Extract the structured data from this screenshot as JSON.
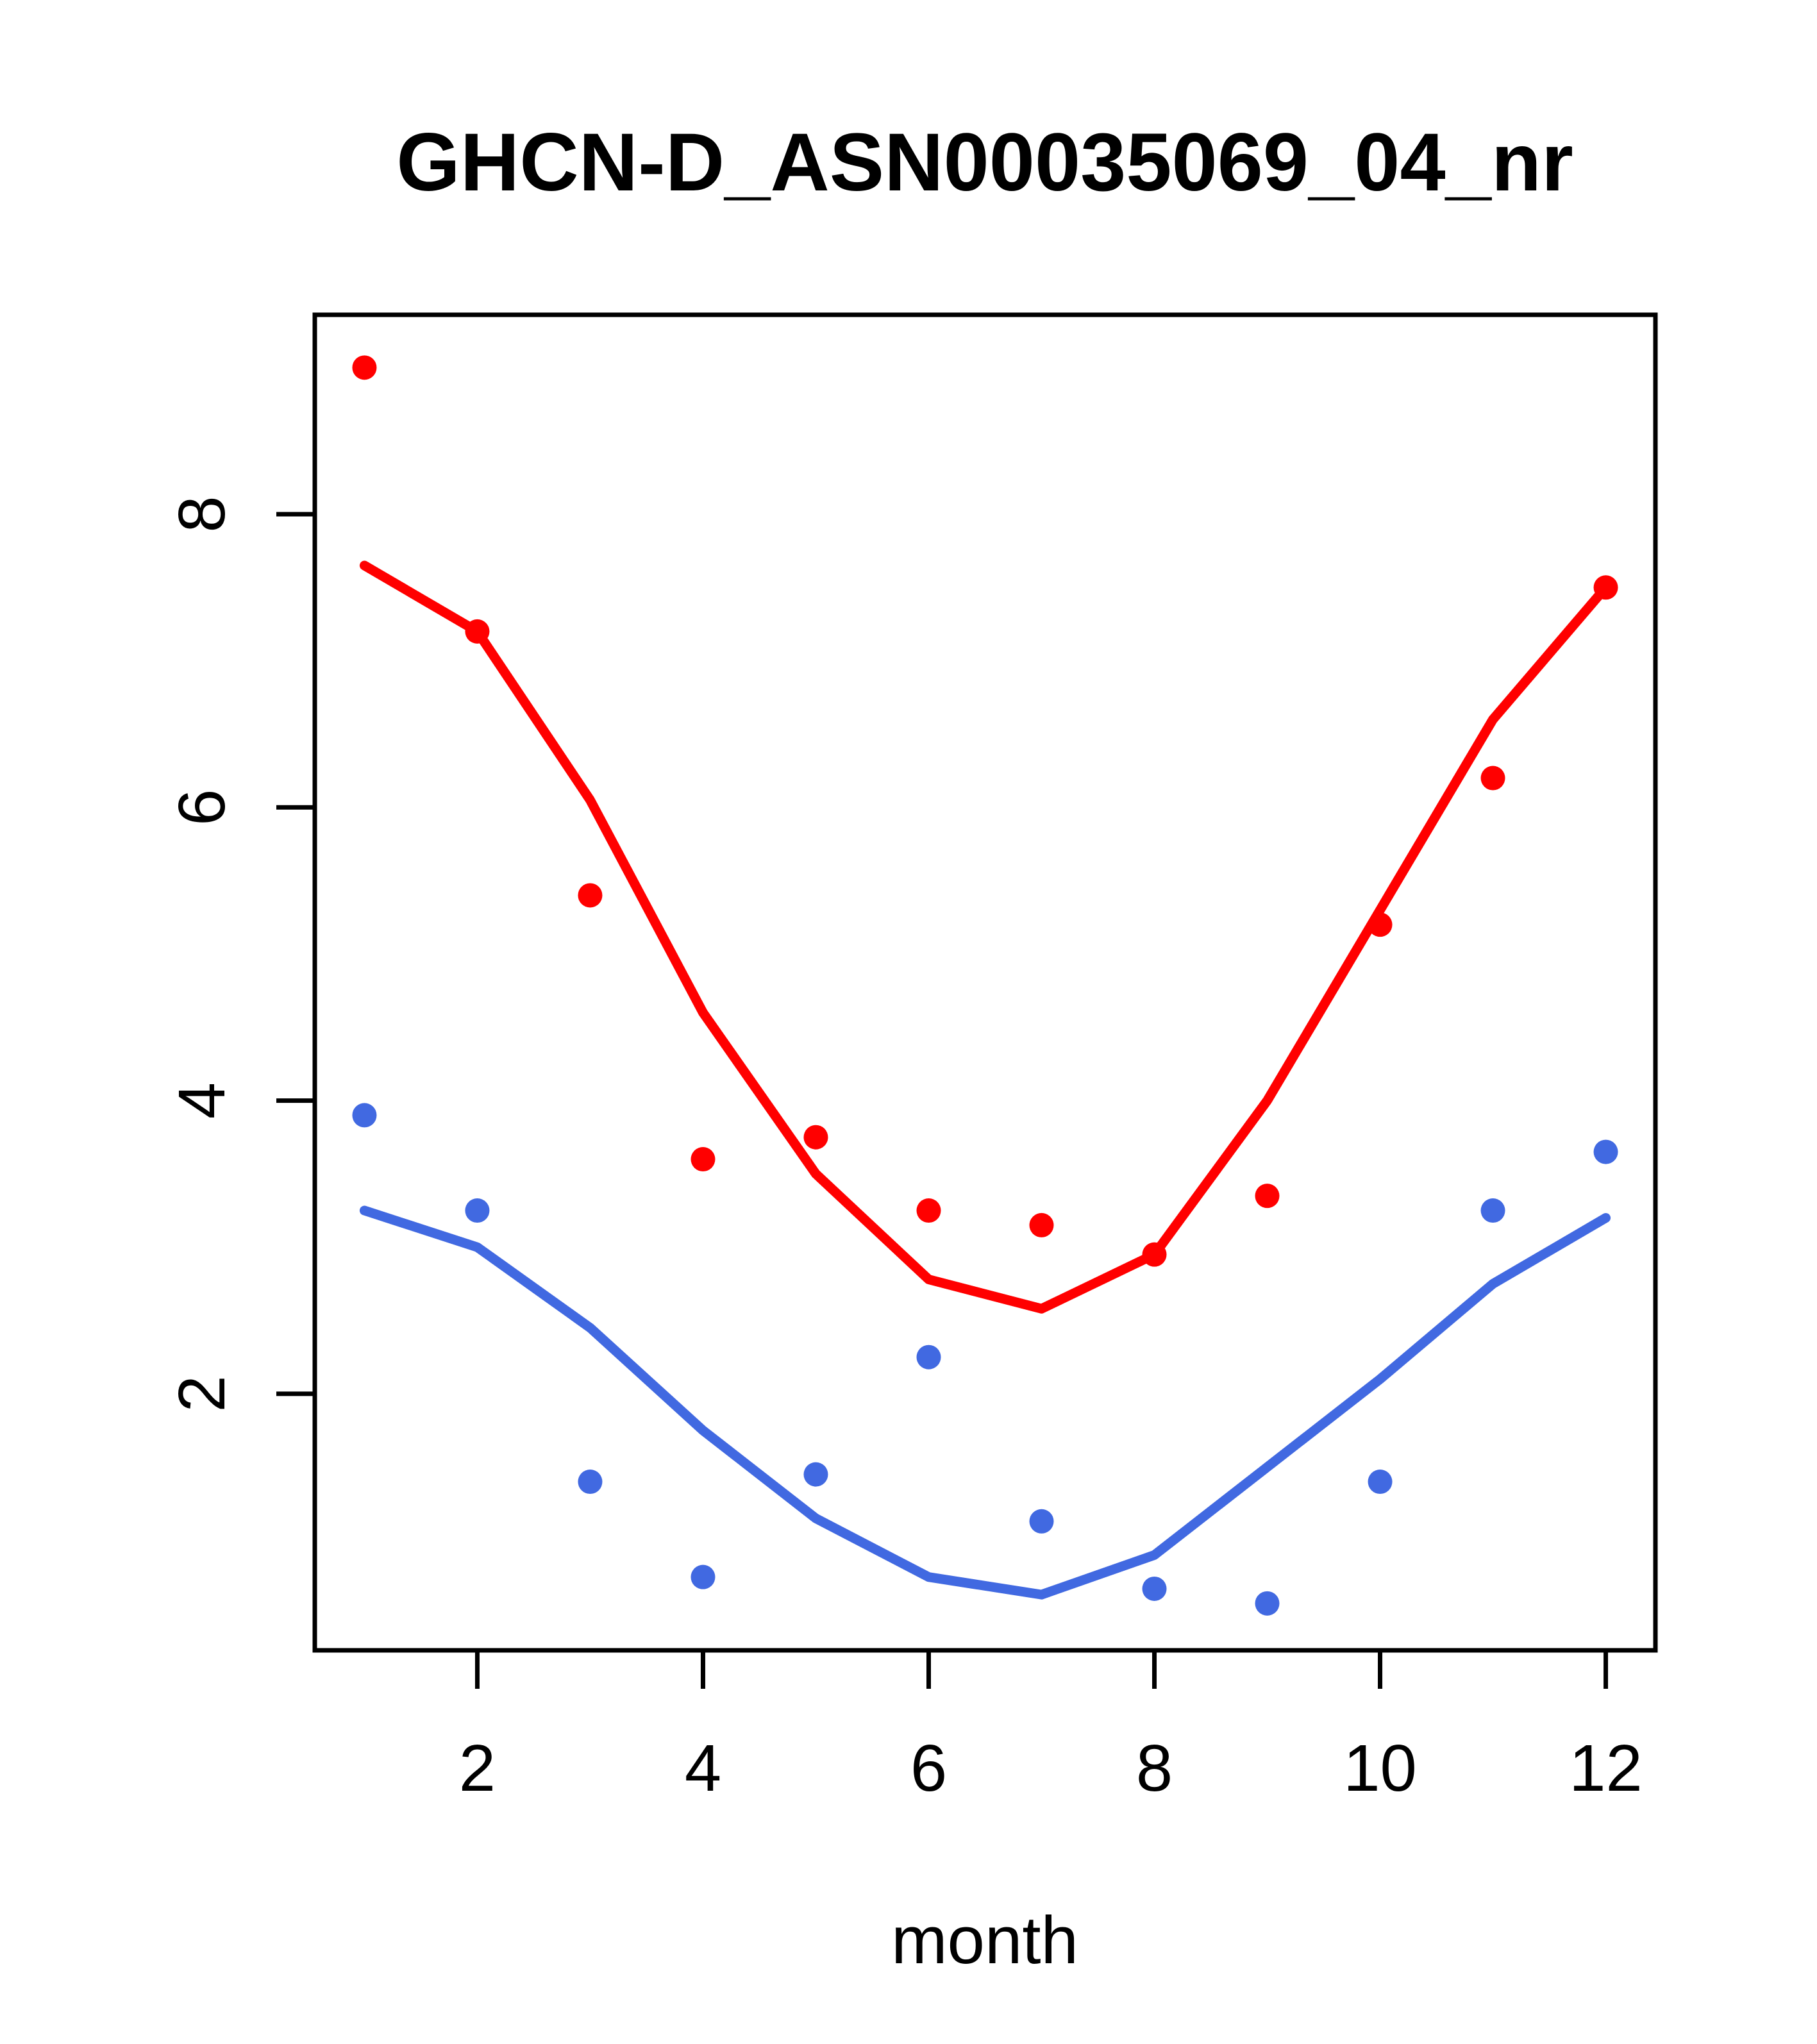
{
  "title": "GHCN-D_ASN00035069_04_nr",
  "chart_data": {
    "type": "scatter",
    "title": "GHCN-D_ASN00035069_04_nr",
    "xlabel": "month",
    "ylabel": "",
    "x": [
      1,
      2,
      3,
      4,
      5,
      6,
      7,
      8,
      9,
      10,
      11,
      12
    ],
    "xlim": [
      0.56,
      12.44
    ],
    "ylim": [
      0.25,
      9.36
    ],
    "x_ticks": [
      2,
      4,
      6,
      8,
      10,
      12
    ],
    "y_ticks": [
      2,
      4,
      6,
      8
    ],
    "grid": false,
    "legend": "none",
    "colors": {
      "red": "#ff0000",
      "blue": "#4169e1"
    },
    "series": [
      {
        "name": "red-points",
        "kind": "points",
        "color": "#ff0000",
        "values": [
          9.0,
          7.2,
          5.4,
          3.6,
          3.75,
          3.25,
          3.15,
          2.95,
          3.35,
          5.2,
          6.2,
          7.5
        ]
      },
      {
        "name": "red-trend-line",
        "kind": "line",
        "color": "#ff0000",
        "values": [
          7.65,
          7.2,
          6.05,
          4.6,
          3.5,
          2.78,
          2.58,
          2.95,
          4.0,
          5.3,
          6.6,
          7.5
        ]
      },
      {
        "name": "blue-points",
        "kind": "points",
        "color": "#4169e1",
        "values": [
          3.9,
          3.25,
          1.4,
          0.75,
          1.45,
          2.25,
          1.13,
          0.67,
          0.57,
          1.4,
          3.25,
          3.65
        ]
      },
      {
        "name": "blue-trend-line",
        "kind": "line",
        "color": "#4169e1",
        "values": [
          3.25,
          3.0,
          2.45,
          1.75,
          1.15,
          0.75,
          0.63,
          0.9,
          1.5,
          2.1,
          2.75,
          3.2
        ]
      }
    ]
  }
}
